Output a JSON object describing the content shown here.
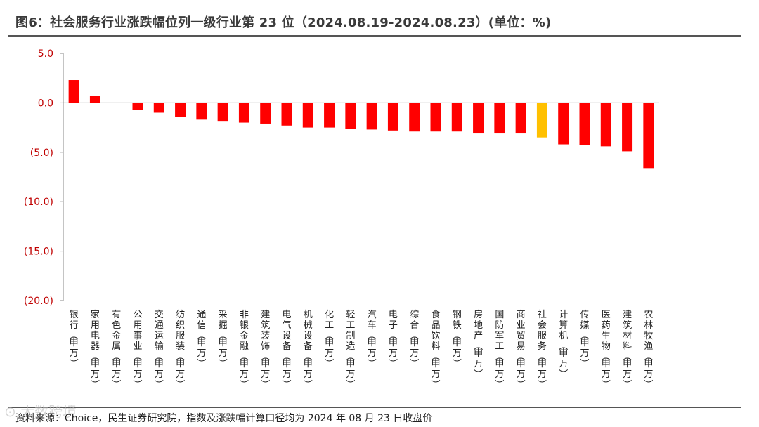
{
  "title": "图6：社会服务行业涨跌幅位列一级行业第 23 位（2024.08.19-2024.08.23）(单位：%)",
  "source": "资料来源：Choice，民生证券研究院，指数及涨跌幅计算口径均为 2024 年 08 月 23 日收盘价",
  "watermark": "⊙ 大数跨境",
  "colors": {
    "bar": "#ff0000",
    "highlight": "#ffc000",
    "ytick": "#c00000"
  },
  "chart_data": {
    "type": "bar",
    "title": "",
    "xlabel": "",
    "ylabel": "",
    "ylim": [
      -20,
      5
    ],
    "yticks": [
      "5.0",
      "0.0",
      "(5.0)",
      "(10.0)",
      "(15.0)",
      "(20.0)"
    ],
    "highlight_category": "社会服务(申万)",
    "categories": [
      "银行(申万)",
      "家用电器(申万)",
      "有色金属(申万)",
      "公用事业(申万)",
      "交通运输(申万)",
      "纺织服装(申万)",
      "通信(申万)",
      "采掘(申万)",
      "非银金融(申万)",
      "建筑装饰(申万)",
      "电气设备(申万)",
      "机械设备(申万)",
      "化工(申万)",
      "轻工制造(申万)",
      "汽车(申万)",
      "电子(申万)",
      "综合(申万)",
      "食品饮料(申万)",
      "钢铁(申万)",
      "房地产(申万)",
      "国防军工(申万)",
      "商业贸易(申万)",
      "社会服务(申万)",
      "计算机(申万)",
      "传媒(申万)",
      "医药生物(申万)",
      "建筑材料(申万)",
      "农林牧渔(申万)"
    ],
    "values": [
      2.3,
      0.7,
      0.0,
      -0.7,
      -1.0,
      -1.4,
      -1.7,
      -1.9,
      -2.0,
      -2.1,
      -2.3,
      -2.5,
      -2.5,
      -2.6,
      -2.7,
      -2.8,
      -2.9,
      -2.9,
      -2.9,
      -3.1,
      -3.1,
      -3.1,
      -3.5,
      -4.2,
      -4.3,
      -4.4,
      -4.9,
      -6.6
    ],
    "grid": false
  }
}
